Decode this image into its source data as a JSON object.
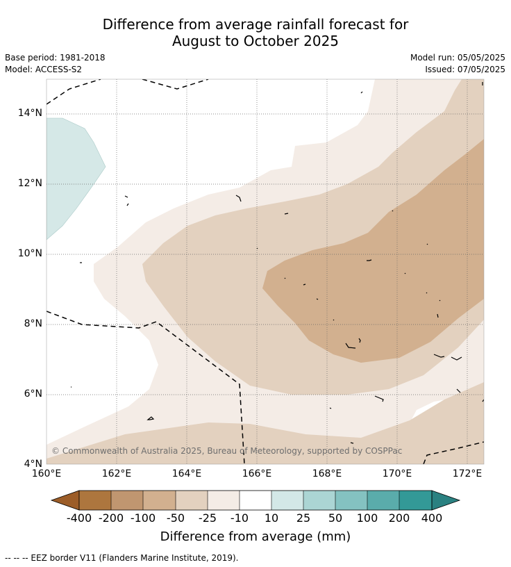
{
  "title": {
    "line1": "Difference from average rainfall forecast for",
    "line2": "August to October 2025"
  },
  "meta": {
    "base_period": "Base period: 1981-2018",
    "model": "Model: ACCESS-S2",
    "model_run": "Model run: 05/05/2025",
    "issued": "Issued: 07/05/2025"
  },
  "map": {
    "lat_labels": [
      "14°N",
      "12°N",
      "10°N",
      "8°N",
      "6°N",
      "4°N"
    ],
    "lon_labels": [
      "160°E",
      "162°E",
      "164°E",
      "166°E",
      "168°E",
      "170°E",
      "172°E"
    ],
    "copyright": "© Commonwealth of Australia 2025, Bureau of Meteorology, supported by COSPPac"
  },
  "colorbar": {
    "ticks": [
      "-400",
      "-200",
      "-100",
      "-50",
      "-25",
      "-10",
      "10",
      "25",
      "50",
      "100",
      "200",
      "400"
    ],
    "colors": [
      "#9c5d28",
      "#ad763e",
      "#c09670",
      "#d2b08f",
      "#e3d1bf",
      "#f4ece6",
      "#ffffff",
      "#d3e8e7",
      "#abd5d4",
      "#84c2c1",
      "#5aacab",
      "#339997",
      "#2a8181"
    ],
    "label": "Difference from average (mm)"
  },
  "footnote": "--  --  -- EEZ border V11 (Flanders Marine Institute, 2019)."
}
